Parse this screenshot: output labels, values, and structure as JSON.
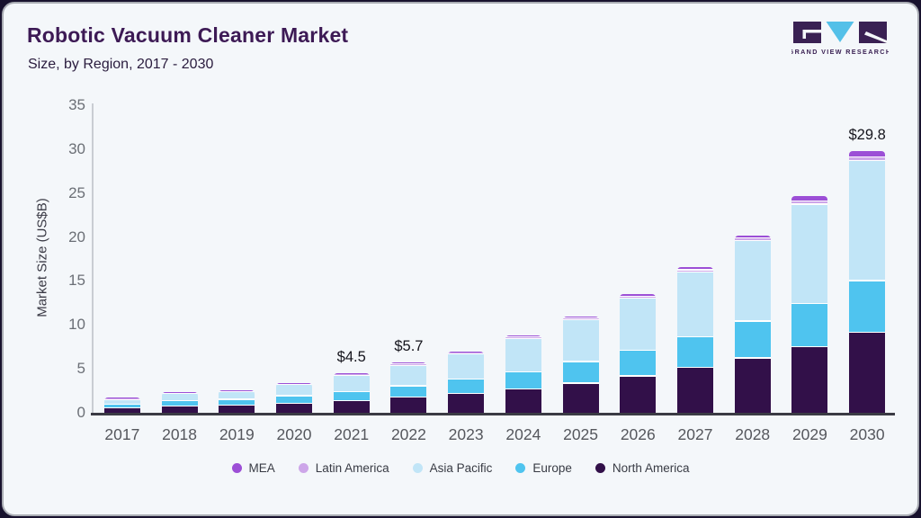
{
  "page": {
    "title": "Robotic Vacuum Cleaner Market",
    "subtitle": "Size, by Region, 2017 - 2030",
    "brand": {
      "name": "GRAND VIEW RESEARCH"
    }
  },
  "colors": {
    "card_background": "#F4F7FA",
    "frame": "#18122E",
    "card_border": "#A9ACB3",
    "title": "#3D1A55",
    "subtitle": "#2A1C3E",
    "x_axis": "#3B3B44",
    "y_axis": "#C9CDD3",
    "tick_text": "#6B6F76",
    "year_text": "#55575D",
    "annotation_text": "#14141C",
    "legend_text": "#383B44",
    "logo_purple": "#3A2153",
    "logo_blue": "#54C0E8"
  },
  "chart_data": {
    "type": "bar",
    "stacked": true,
    "title": "Robotic Vacuum Cleaner Market",
    "subtitle": "Size, by Region, 2017 - 2030",
    "xlabel": "",
    "ylabel": "Market Size (US$B)",
    "ylim": [
      0,
      35
    ],
    "yticks": [
      0,
      5,
      10,
      15,
      20,
      25,
      30,
      35
    ],
    "grid": false,
    "legend_position": "bottom",
    "categories": [
      "2017",
      "2018",
      "2019",
      "2020",
      "2021",
      "2022",
      "2023",
      "2024",
      "2025",
      "2026",
      "2027",
      "2028",
      "2029",
      "2030"
    ],
    "series": [
      {
        "name": "MEA",
        "color": "#9C4FD6",
        "values": [
          0.05,
          0.05,
          0.05,
          0.05,
          0.08,
          0.1,
          0.1,
          0.15,
          0.2,
          0.2,
          0.25,
          0.25,
          0.5,
          0.6
        ]
      },
      {
        "name": "Latin America",
        "color": "#CDA6E9",
        "values": [
          0.05,
          0.05,
          0.05,
          0.05,
          0.07,
          0.1,
          0.1,
          0.15,
          0.15,
          0.2,
          0.25,
          0.25,
          0.4,
          0.4
        ]
      },
      {
        "name": "Asia Pacific",
        "color": "#C1E5F7",
        "values": [
          0.55,
          0.85,
          0.9,
          1.3,
          1.85,
          2.35,
          2.9,
          3.8,
          4.75,
          5.95,
          7.4,
          9.2,
          11.3,
          13.7
        ]
      },
      {
        "name": "Europe",
        "color": "#4FC4EF",
        "values": [
          0.45,
          0.6,
          0.65,
          0.85,
          1.05,
          1.3,
          1.65,
          1.9,
          2.45,
          2.9,
          3.5,
          4.2,
          4.9,
          5.9
        ]
      },
      {
        "name": "North America",
        "color": "#321049",
        "values": [
          0.6,
          0.85,
          0.95,
          1.15,
          1.45,
          1.85,
          2.25,
          2.8,
          3.45,
          4.25,
          5.2,
          6.3,
          7.6,
          9.2
        ]
      }
    ],
    "stack_order_bottom_to_top": [
      "North America",
      "Europe",
      "Asia Pacific",
      "Latin America",
      "MEA"
    ],
    "totals": [
      1.7,
      2.4,
      2.6,
      3.4,
      4.5,
      5.7,
      7.0,
      8.8,
      11.0,
      13.5,
      16.6,
      20.2,
      24.7,
      29.8
    ],
    "annotations": [
      {
        "category": "2021",
        "text": "$4.5"
      },
      {
        "category": "2022",
        "text": "$5.7"
      },
      {
        "category": "2030",
        "text": "$29.8"
      }
    ]
  }
}
